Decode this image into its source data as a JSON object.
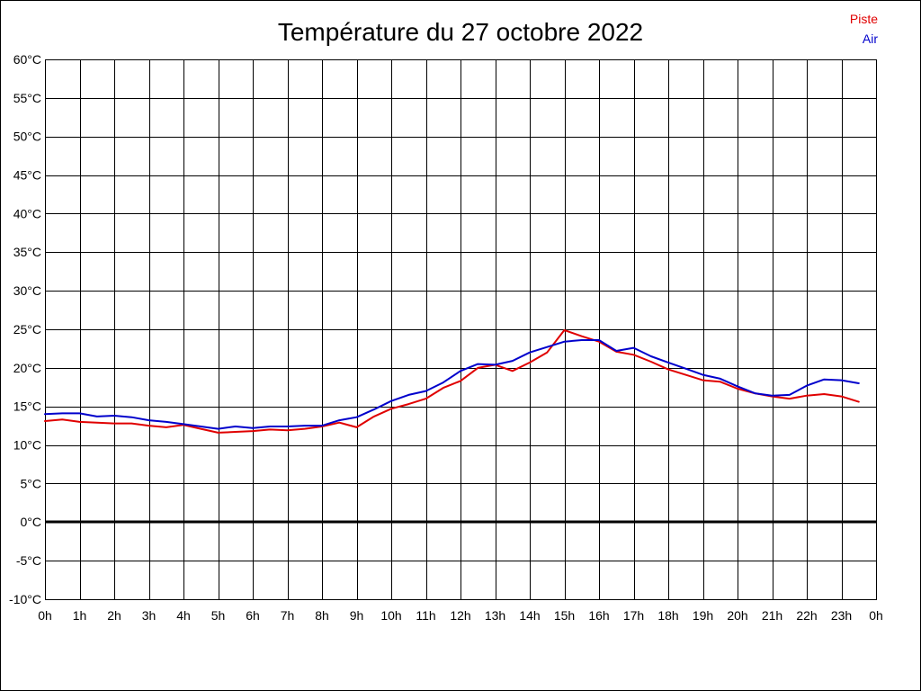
{
  "chart_data": {
    "type": "line",
    "title": "Température du 27 octobre 2022",
    "x": [
      0,
      0.5,
      1,
      1.5,
      2,
      2.5,
      3,
      3.5,
      4,
      4.5,
      5,
      5.5,
      6,
      6.5,
      7,
      7.5,
      8,
      8.5,
      9,
      9.5,
      10,
      10.5,
      11,
      11.5,
      12,
      12.5,
      13,
      13.5,
      14,
      14.5,
      15,
      15.5,
      16,
      16.5,
      17,
      17.5,
      18,
      18.5,
      19,
      19.5,
      20,
      20.5,
      21,
      21.5,
      22,
      22.5,
      23,
      23.5
    ],
    "xlim": [
      0,
      24
    ],
    "ylim": [
      -10,
      60
    ],
    "x_ticks": [
      0,
      1,
      2,
      3,
      4,
      5,
      6,
      7,
      8,
      9,
      10,
      11,
      12,
      13,
      14,
      15,
      16,
      17,
      18,
      19,
      20,
      21,
      22,
      23,
      24
    ],
    "x_tick_labels": [
      "0h",
      "1h",
      "2h",
      "3h",
      "4h",
      "5h",
      "6h",
      "7h",
      "8h",
      "9h",
      "10h",
      "11h",
      "12h",
      "13h",
      "14h",
      "15h",
      "16h",
      "17h",
      "18h",
      "19h",
      "20h",
      "21h",
      "22h",
      "23h",
      "0h"
    ],
    "y_ticks": [
      60,
      55,
      50,
      45,
      40,
      35,
      30,
      25,
      20,
      15,
      10,
      5,
      0,
      -5,
      -10
    ],
    "y_tick_labels": [
      "60°C",
      "55°C",
      "50°C",
      "45°C",
      "40°C",
      "35°C",
      "30°C",
      "25°C",
      "20°C",
      "15°C",
      "10°C",
      "5°C",
      "0°C",
      "-5°C",
      "-10°C"
    ],
    "grid": true,
    "zero_line": true,
    "legend_position": "top-right",
    "series": [
      {
        "name": "Piste",
        "color": "#e00000",
        "values": [
          13.1,
          13.3,
          13.0,
          12.9,
          12.8,
          12.8,
          12.5,
          12.3,
          12.6,
          12.1,
          11.6,
          11.7,
          11.8,
          12.0,
          11.9,
          12.1,
          12.4,
          12.9,
          12.3,
          13.7,
          14.7,
          15.3,
          16.0,
          17.4,
          18.3,
          20.0,
          20.4,
          19.6,
          20.7,
          22.0,
          24.9,
          24.1,
          23.4,
          22.1,
          21.7,
          20.8,
          19.8,
          19.1,
          18.4,
          18.2,
          17.3,
          16.7,
          16.3,
          16.0,
          16.4,
          16.6,
          16.3,
          15.6
        ]
      },
      {
        "name": "Air",
        "color": "#0000cc",
        "values": [
          14.0,
          14.1,
          14.1,
          13.7,
          13.8,
          13.6,
          13.2,
          13.0,
          12.7,
          12.4,
          12.1,
          12.4,
          12.2,
          12.4,
          12.4,
          12.5,
          12.5,
          13.2,
          13.6,
          14.6,
          15.7,
          16.5,
          17.0,
          18.1,
          19.6,
          20.5,
          20.4,
          20.9,
          22.0,
          22.7,
          23.4,
          23.6,
          23.6,
          22.2,
          22.6,
          21.5,
          20.7,
          19.9,
          19.1,
          18.6,
          17.6,
          16.7,
          16.4,
          16.5,
          17.7,
          18.5,
          18.4,
          18.0
        ]
      }
    ]
  }
}
